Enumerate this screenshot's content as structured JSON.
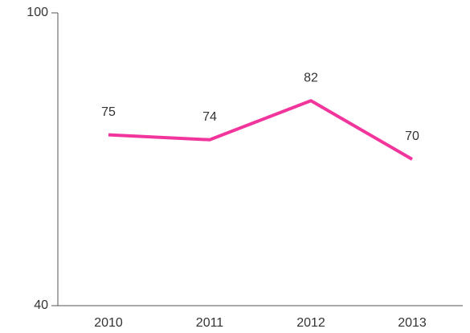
{
  "chart_data": {
    "type": "line",
    "categories": [
      "2010",
      "2011",
      "2012",
      "2013"
    ],
    "series": [
      {
        "name": null,
        "color": "#f2359d",
        "values": [
          75,
          74,
          82,
          70
        ]
      }
    ],
    "ylim": [
      40,
      100
    ],
    "yticks": [
      40,
      100
    ],
    "grid": false
  }
}
